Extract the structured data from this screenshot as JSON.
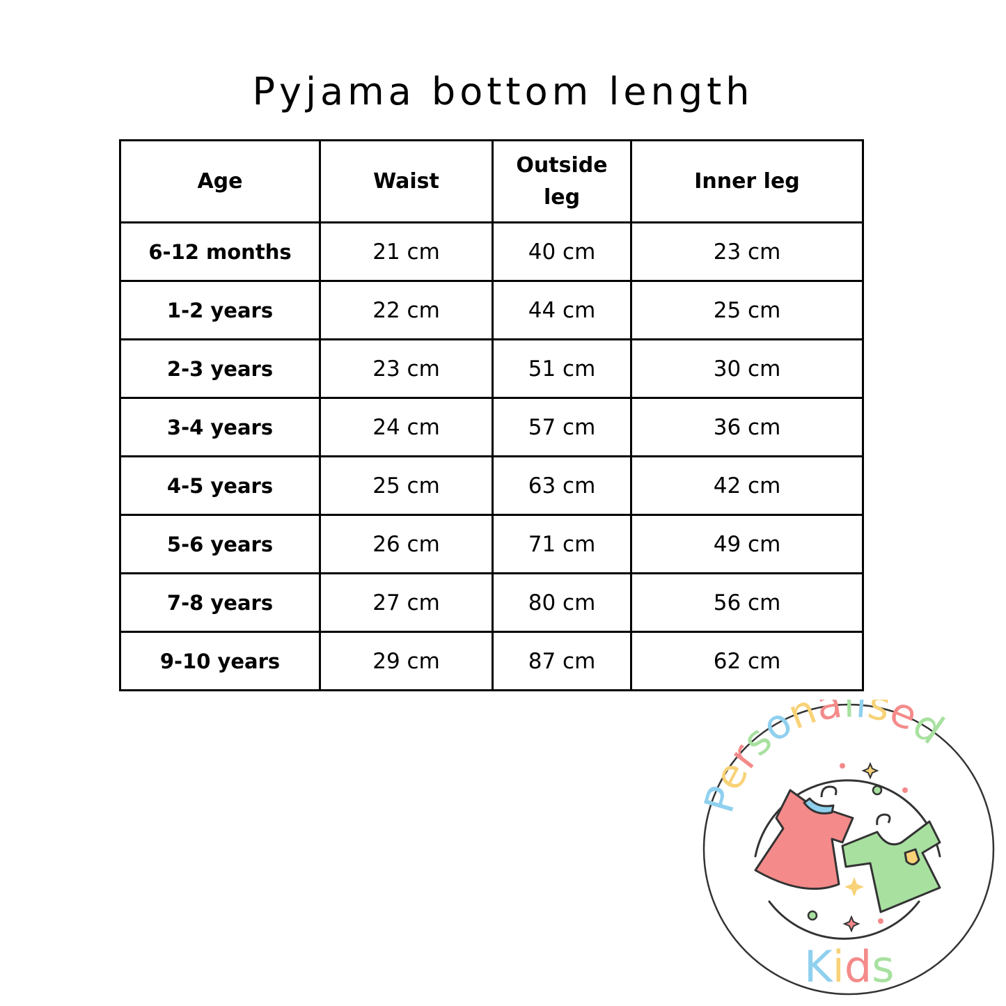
{
  "title": "Pyjama bottom length",
  "table": {
    "headers": [
      "Age",
      "Waist",
      "Outside leg",
      "Inner leg"
    ],
    "rows": [
      [
        "6-12 months",
        "21 cm",
        "40 cm",
        "23 cm"
      ],
      [
        "1-2 years",
        "22 cm",
        "44 cm",
        "25 cm"
      ],
      [
        "2-3 years",
        "23 cm",
        "51 cm",
        "30 cm"
      ],
      [
        "3-4 years",
        "24 cm",
        "57 cm",
        "36 cm"
      ],
      [
        "4-5 years",
        "25 cm",
        "63 cm",
        "42 cm"
      ],
      [
        "5-6 years",
        "26 cm",
        "71 cm",
        "49 cm"
      ],
      [
        "7-8 years",
        "27 cm",
        "80 cm",
        "56 cm"
      ],
      [
        "9-10 years",
        "29 cm",
        "87 cm",
        "62 cm"
      ]
    ]
  },
  "logo": {
    "top_text": "Personalised",
    "bottom_text": "Kids",
    "colors": [
      "#8fd0ee",
      "#f48a8a",
      "#f8d277",
      "#a8e0a0"
    ]
  }
}
